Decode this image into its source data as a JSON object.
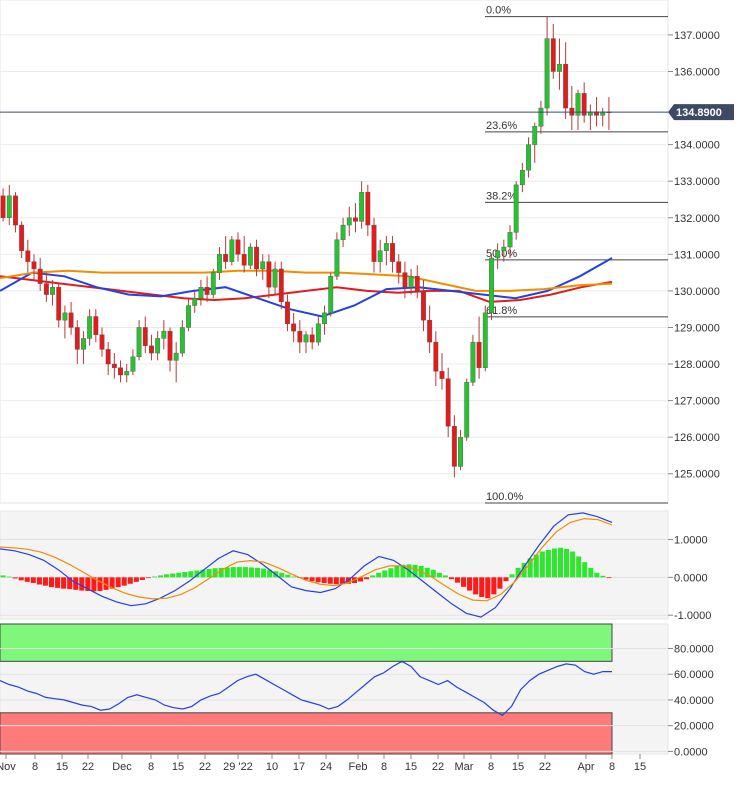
{
  "chart_data": [
    {
      "type": "candlestick",
      "current_price": "134.8900",
      "y_ticks": [
        "137.0000",
        "136.0000",
        "134.0000",
        "133.0000",
        "132.0000",
        "131.0000",
        "130.0000",
        "129.0000",
        "128.0000",
        "127.0000",
        "126.0000",
        "125.0000"
      ],
      "y_tick_values": [
        137,
        136,
        134,
        133,
        132,
        131,
        130,
        129,
        128,
        127,
        126,
        125
      ],
      "ylim": [
        124.2,
        137.9
      ],
      "fib_levels": [
        {
          "label": "0.0%",
          "value": 137.5
        },
        {
          "label": "23.6%",
          "value": 134.35
        },
        {
          "label": "38.2%",
          "value": 132.42
        },
        {
          "label": "50.0%",
          "value": 130.85
        },
        {
          "label": "61.8%",
          "value": 129.29
        },
        {
          "label": "100.0%",
          "value": 124.2
        }
      ],
      "series": [
        {
          "color": "#e01c1c",
          "values": [
            130.4,
            130.3,
            130.2,
            130.1,
            130.0,
            129.9,
            129.8,
            129.75,
            129.8,
            129.9,
            130.0,
            130.1,
            130.0,
            129.95,
            130.0,
            130.0,
            129.7,
            129.75,
            129.9,
            130.1,
            130.25
          ]
        },
        {
          "color": "#2541e0",
          "values": [
            130.0,
            130.5,
            130.4,
            130.1,
            129.9,
            129.85,
            130.0,
            130.1,
            129.8,
            129.5,
            129.3,
            129.6,
            130.05,
            130.1,
            130.0,
            129.9,
            129.8,
            130.0,
            130.4,
            130.9
          ]
        },
        {
          "color": "#f28c00",
          "values": [
            130.35,
            130.5,
            130.55,
            130.5,
            130.5,
            130.5,
            130.5,
            130.55,
            130.55,
            130.5,
            130.5,
            130.45,
            130.4,
            130.2,
            130.0,
            130.0,
            130.05,
            130.15,
            130.2
          ]
        }
      ],
      "candles": [
        [
          132.6,
          132.8,
          131.9,
          132.0
        ],
        [
          132.0,
          132.9,
          131.8,
          132.6
        ],
        [
          132.6,
          132.7,
          131.6,
          131.8
        ],
        [
          131.8,
          131.9,
          130.9,
          131.1
        ],
        [
          131.1,
          131.4,
          130.5,
          130.8
        ],
        [
          130.8,
          131.0,
          130.3,
          130.6
        ],
        [
          130.6,
          130.9,
          130.0,
          130.2
        ],
        [
          130.2,
          130.5,
          129.7,
          129.9
        ],
        [
          129.9,
          130.3,
          129.6,
          130.1
        ],
        [
          130.1,
          130.2,
          129.0,
          129.2
        ],
        [
          129.2,
          129.6,
          128.7,
          129.4
        ],
        [
          129.4,
          129.7,
          128.8,
          129.0
        ],
        [
          129.0,
          129.2,
          128.0,
          128.4
        ],
        [
          128.4,
          128.9,
          128.0,
          128.7
        ],
        [
          128.7,
          129.5,
          128.5,
          129.3
        ],
        [
          129.3,
          129.5,
          128.6,
          128.8
        ],
        [
          128.8,
          129.0,
          128.2,
          128.4
        ],
        [
          128.4,
          128.6,
          127.7,
          128.0
        ],
        [
          128.0,
          128.3,
          127.6,
          127.9
        ],
        [
          127.9,
          128.1,
          127.5,
          127.7
        ],
        [
          127.7,
          128.0,
          127.5,
          127.8
        ],
        [
          127.8,
          128.4,
          127.7,
          128.2
        ],
        [
          128.2,
          129.2,
          128.1,
          129.0
        ],
        [
          129.0,
          129.3,
          128.3,
          128.5
        ],
        [
          128.5,
          128.8,
          128.1,
          128.3
        ],
        [
          128.3,
          128.9,
          128.1,
          128.7
        ],
        [
          128.7,
          129.2,
          128.4,
          128.9
        ],
        [
          128.9,
          129.0,
          127.8,
          128.1
        ],
        [
          128.1,
          128.6,
          127.5,
          128.3
        ],
        [
          128.3,
          129.2,
          128.2,
          129.0
        ],
        [
          129.0,
          129.8,
          128.9,
          129.6
        ],
        [
          129.6,
          130.0,
          129.4,
          129.8
        ],
        [
          129.8,
          130.3,
          129.6,
          130.1
        ],
        [
          130.1,
          130.4,
          129.7,
          129.9
        ],
        [
          129.9,
          130.6,
          129.8,
          130.5
        ],
        [
          130.5,
          131.2,
          130.3,
          131.0
        ],
        [
          131.0,
          131.5,
          130.6,
          130.8
        ],
        [
          130.8,
          131.5,
          130.7,
          131.4
        ],
        [
          131.4,
          131.6,
          130.8,
          131.0
        ],
        [
          131.0,
          131.5,
          130.5,
          130.7
        ],
        [
          130.7,
          131.3,
          130.6,
          131.2
        ],
        [
          131.2,
          131.4,
          130.4,
          130.6
        ],
        [
          130.6,
          131.0,
          130.3,
          130.8
        ],
        [
          130.8,
          131.0,
          129.8,
          130.1
        ],
        [
          130.1,
          130.8,
          129.9,
          130.6
        ],
        [
          130.6,
          130.8,
          129.5,
          129.7
        ],
        [
          129.7,
          129.9,
          128.9,
          129.1
        ],
        [
          129.1,
          129.4,
          128.6,
          128.9
        ],
        [
          128.9,
          129.2,
          128.3,
          128.6
        ],
        [
          128.6,
          128.9,
          128.3,
          128.8
        ],
        [
          128.8,
          129.0,
          128.4,
          128.6
        ],
        [
          128.6,
          129.3,
          128.5,
          129.1
        ],
        [
          129.1,
          129.6,
          128.8,
          129.4
        ],
        [
          129.4,
          130.5,
          129.3,
          130.4
        ],
        [
          130.4,
          131.6,
          130.3,
          131.4
        ],
        [
          131.4,
          132.0,
          131.2,
          131.8
        ],
        [
          131.8,
          132.3,
          131.5,
          132.0
        ],
        [
          132.0,
          132.4,
          131.6,
          131.9
        ],
        [
          131.9,
          133.0,
          131.7,
          132.7
        ],
        [
          132.7,
          132.9,
          131.5,
          131.8
        ],
        [
          131.8,
          132.0,
          130.5,
          130.8
        ],
        [
          130.8,
          131.4,
          130.5,
          131.1
        ],
        [
          131.1,
          131.5,
          130.7,
          131.3
        ],
        [
          131.3,
          131.5,
          130.5,
          130.8
        ],
        [
          130.8,
          131.0,
          130.2,
          130.5
        ],
        [
          130.5,
          130.8,
          129.8,
          130.1
        ],
        [
          130.1,
          130.6,
          129.9,
          130.4
        ],
        [
          130.4,
          130.7,
          129.8,
          130.0
        ],
        [
          130.0,
          130.3,
          128.9,
          129.2
        ],
        [
          129.2,
          129.6,
          128.3,
          128.6
        ],
        [
          128.6,
          128.9,
          127.4,
          127.8
        ],
        [
          127.8,
          128.3,
          127.3,
          127.6
        ],
        [
          127.6,
          127.9,
          126.0,
          126.3
        ],
        [
          126.3,
          126.6,
          124.9,
          125.2
        ],
        [
          125.2,
          126.2,
          125.1,
          126.0
        ],
        [
          126.0,
          127.6,
          125.9,
          127.5
        ],
        [
          127.5,
          128.8,
          127.4,
          128.6
        ],
        [
          128.6,
          129.3,
          127.6,
          127.9
        ],
        [
          127.9,
          129.6,
          127.8,
          129.4
        ],
        [
          129.4,
          131.0,
          129.2,
          130.9
        ],
        [
          130.9,
          131.3,
          130.6,
          131.1
        ],
        [
          131.1,
          131.4,
          130.8,
          131.2
        ],
        [
          131.2,
          131.8,
          130.9,
          131.6
        ],
        [
          131.6,
          133.0,
          131.4,
          132.9
        ],
        [
          132.9,
          133.5,
          132.7,
          133.3
        ],
        [
          133.3,
          134.2,
          133.1,
          134.0
        ],
        [
          134.0,
          134.6,
          133.5,
          134.5
        ],
        [
          134.5,
          135.2,
          134.3,
          135.0
        ],
        [
          135.0,
          137.5,
          134.8,
          136.9
        ],
        [
          136.9,
          137.3,
          135.8,
          136.0
        ],
        [
          136.0,
          136.9,
          135.5,
          136.2
        ],
        [
          136.2,
          136.8,
          134.7,
          135.0
        ],
        [
          135.0,
          135.6,
          134.4,
          134.8
        ],
        [
          134.8,
          135.5,
          134.4,
          135.4
        ],
        [
          135.4,
          135.7,
          134.6,
          134.8
        ],
        [
          134.8,
          135.1,
          134.4,
          134.9
        ],
        [
          134.9,
          135.3,
          134.5,
          134.8
        ],
        [
          134.8,
          135.0,
          134.5,
          134.9
        ],
        [
          134.9,
          135.3,
          134.4,
          134.9
        ]
      ]
    },
    {
      "type": "bar",
      "y_ticks": [
        "1.0000",
        "0.0000",
        "-1.0000"
      ],
      "y_tick_values": [
        1,
        0,
        -1
      ],
      "ylim": [
        -1.1,
        1.75
      ],
      "histogram": [
        0.05,
        0.02,
        -0.03,
        -0.08,
        -0.12,
        -0.15,
        -0.19,
        -0.22,
        -0.26,
        -0.28,
        -0.3,
        -0.31,
        -0.33,
        -0.35,
        -0.36,
        -0.37,
        -0.36,
        -0.33,
        -0.3,
        -0.26,
        -0.22,
        -0.17,
        -0.12,
        -0.07,
        -0.02,
        0.02,
        0.05,
        0.08,
        0.1,
        0.12,
        0.14,
        0.16,
        0.18,
        0.2,
        0.22,
        0.24,
        0.25,
        0.26,
        0.27,
        0.27,
        0.27,
        0.26,
        0.25,
        0.23,
        0.2,
        0.16,
        0.12,
        0.07,
        0.02,
        -0.02,
        -0.06,
        -0.1,
        -0.13,
        -0.15,
        -0.17,
        -0.18,
        -0.18,
        -0.17,
        -0.15,
        -0.11,
        -0.05,
        0.05,
        0.12,
        0.18,
        0.24,
        0.3,
        0.33,
        0.34,
        0.33,
        0.3,
        0.25,
        0.2,
        0.12,
        0.05,
        -0.05,
        -0.14,
        -0.25,
        -0.35,
        -0.45,
        -0.52,
        -0.55,
        -0.45,
        -0.3,
        -0.1,
        0.08,
        0.25,
        0.38,
        0.5,
        0.6,
        0.68,
        0.72,
        0.76,
        0.78,
        0.75,
        0.68,
        0.55,
        0.4,
        0.25,
        0.12,
        0.04,
        -0.02
      ],
      "series": [
        {
          "color": "#2541e0",
          "values": [
            0.75,
            0.7,
            0.6,
            0.45,
            0.2,
            -0.1,
            -0.3,
            -0.5,
            -0.65,
            -0.75,
            -0.7,
            -0.55,
            -0.35,
            -0.1,
            0.2,
            0.5,
            0.7,
            0.6,
            0.35,
            0.05,
            -0.25,
            -0.35,
            -0.4,
            -0.3,
            -0.05,
            0.3,
            0.55,
            0.45,
            0.2,
            -0.1,
            -0.4,
            -0.7,
            -0.95,
            -1.05,
            -0.8,
            -0.3,
            0.3,
            0.85,
            1.35,
            1.65,
            1.7,
            1.6,
            1.45
          ]
        },
        {
          "color": "#f28c00",
          "values": [
            0.8,
            0.78,
            0.74,
            0.66,
            0.52,
            0.34,
            0.13,
            -0.08,
            -0.27,
            -0.42,
            -0.52,
            -0.57,
            -0.55,
            -0.45,
            -0.28,
            -0.04,
            0.2,
            0.4,
            0.44,
            0.4,
            0.25,
            0.08,
            -0.08,
            -0.18,
            -0.22,
            -0.15,
            0.02,
            0.2,
            0.3,
            0.3,
            0.2,
            0.02,
            -0.22,
            -0.45,
            -0.6,
            -0.62,
            -0.45,
            -0.12,
            0.32,
            0.8,
            1.2,
            1.45,
            1.55,
            1.52,
            1.38
          ]
        }
      ]
    },
    {
      "type": "line",
      "y_ticks": [
        "80.0000",
        "60.0000",
        "40.0000",
        "20.0000",
        "0.0000"
      ],
      "y_tick_values": [
        80,
        60,
        40,
        20,
        0
      ],
      "ylim": [
        -2,
        99
      ],
      "overbought_level": 70,
      "oversold_level": 30,
      "series": [
        {
          "color": "#2541e0",
          "values": [
            55,
            52,
            50,
            47,
            45,
            42,
            41,
            40,
            38,
            36,
            35,
            32,
            33,
            37,
            42,
            44,
            42,
            40,
            36,
            34,
            33,
            35,
            40,
            43,
            45,
            50,
            55,
            58,
            60,
            56,
            52,
            48,
            44,
            40,
            38,
            36,
            33,
            35,
            40,
            46,
            52,
            58,
            61,
            66,
            70,
            66,
            58,
            55,
            52,
            55,
            50,
            46,
            42,
            38,
            32,
            28,
            35,
            48,
            55,
            60,
            63,
            66,
            68,
            67,
            62,
            60,
            62,
            62
          ]
        }
      ]
    },
    {
      "type": "x-axis",
      "x_tick_labels": [
        "Nov",
        "8",
        "15",
        "22",
        "Dec",
        "8",
        "15",
        "22",
        "29 '22",
        "10",
        "17",
        "24",
        "Feb",
        "8",
        "15",
        "22",
        "Mar",
        "8",
        "15",
        "22",
        "Apr",
        "8",
        "15"
      ]
    }
  ]
}
